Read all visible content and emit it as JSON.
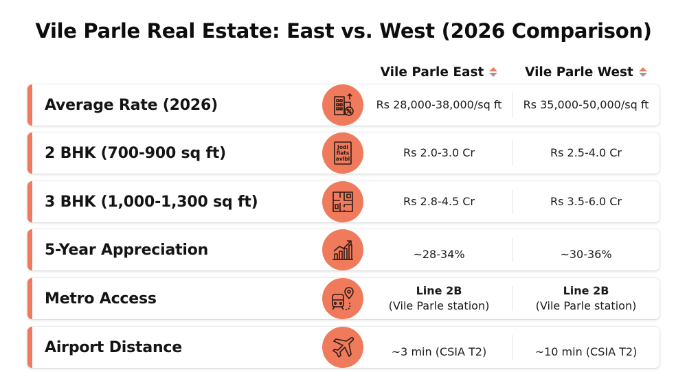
{
  "title": "Vile Parle Real Estate: East vs. West (2026 Comparison)",
  "columns": {
    "east": "Vile Parle East",
    "west": "Vile Parle West"
  },
  "colors": {
    "accent": "#f07a5c",
    "sort_down": "#9a9a9a"
  },
  "rows": [
    {
      "label": "Average Rate (2026)",
      "icon": "building-percent-icon",
      "east": "Rs 28,000-38,000/sq ft",
      "west": "Rs 35,000-50,000/sq ft"
    },
    {
      "label": "2 BHK (700-900 sq ft)",
      "icon": "jodi-flats-sign-icon",
      "icon_text": [
        "Jodi",
        "flats",
        "avlbl"
      ],
      "east": "Rs 2.0-3.0 Cr",
      "west": "Rs 2.5-4.0 Cr"
    },
    {
      "label": "3 BHK (1,000-1,300 sq ft)",
      "icon": "floor-plan-icon",
      "east": "Rs 2.8-4.5 Cr",
      "west": "Rs 3.5-6.0 Cr"
    },
    {
      "label": "5-Year Appreciation",
      "icon": "growth-chart-icon",
      "east": "~28-34%",
      "west": "~30-36%"
    },
    {
      "label": "Metro Access",
      "icon": "metro-train-location-icon",
      "east_line": "Line 2B",
      "east_station": "(Vile Parle station)",
      "west_line": "Line 2B",
      "west_station": "(Vile Parle station)"
    },
    {
      "label": "Airport Distance",
      "icon": "airplane-icon",
      "east": "~3 min (CSIA T2)",
      "west": "~10 min (CSIA T2)"
    }
  ]
}
